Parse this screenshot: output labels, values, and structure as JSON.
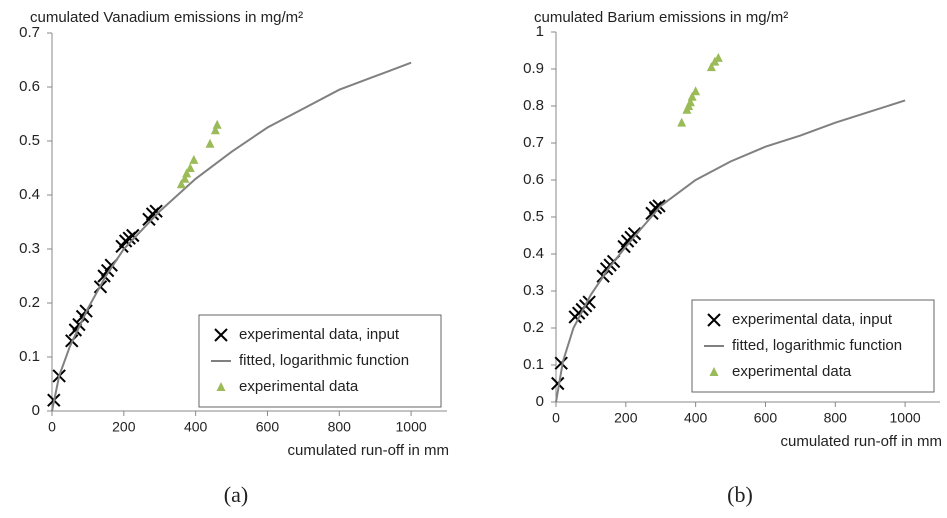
{
  "chart_data": [
    {
      "type": "line",
      "title": "cumulated Vanadium emissions in mg/m²",
      "x_label": "cumulated run-off in mm",
      "caption": "(a)",
      "xlim": [
        0,
        1100
      ],
      "xticks": [
        0,
        200,
        400,
        600,
        800,
        1000
      ],
      "ylim": [
        0,
        0.7
      ],
      "yticks": [
        0,
        0.1,
        0.2,
        0.3,
        0.4,
        0.5,
        0.6,
        0.7
      ],
      "legend": "lower right",
      "series": [
        {
          "name": "experimental data, input",
          "color": "#000000",
          "marker": "x",
          "x": [
            5,
            20,
            55,
            65,
            75,
            85,
            95,
            135,
            145,
            155,
            165,
            195,
            205,
            215,
            225,
            270,
            280,
            290
          ],
          "values": [
            0.02,
            0.065,
            0.13,
            0.15,
            0.16,
            0.175,
            0.185,
            0.23,
            0.25,
            0.26,
            0.27,
            0.305,
            0.315,
            0.32,
            0.325,
            0.355,
            0.365,
            0.37
          ]
        },
        {
          "name": "fitted, logarithmic function",
          "color": "#808080",
          "marker": "line",
          "x": [
            0,
            20,
            50,
            100,
            150,
            200,
            300,
            400,
            500,
            600,
            700,
            800,
            900,
            1000
          ],
          "values": [
            0,
            0.065,
            0.12,
            0.19,
            0.25,
            0.3,
            0.37,
            0.43,
            0.48,
            0.525,
            0.56,
            0.595,
            0.62,
            0.645
          ]
        },
        {
          "name": "experimental data",
          "color": "#9bbb59",
          "marker": "triangle",
          "x": [
            360,
            370,
            375,
            385,
            395,
            440,
            455,
            460
          ],
          "values": [
            0.42,
            0.43,
            0.44,
            0.45,
            0.465,
            0.495,
            0.52,
            0.53
          ]
        }
      ]
    },
    {
      "type": "line",
      "title": "cumulated Barium emissions in mg/m²",
      "x_label": "cumulated run-off in mm",
      "caption": "(b)",
      "xlim": [
        0,
        1100
      ],
      "xticks": [
        0,
        200,
        400,
        600,
        800,
        1000
      ],
      "ylim": [
        0,
        1
      ],
      "yticks": [
        0,
        0.1,
        0.2,
        0.3,
        0.4,
        0.5,
        0.6,
        0.7,
        0.8,
        0.9,
        1
      ],
      "legend": "lower right",
      "series": [
        {
          "name": "experimental data, input",
          "color": "#000000",
          "marker": "x",
          "x": [
            5,
            15,
            55,
            65,
            75,
            85,
            95,
            135,
            145,
            155,
            165,
            195,
            205,
            215,
            225,
            275,
            285,
            295
          ],
          "values": [
            0.05,
            0.105,
            0.23,
            0.24,
            0.25,
            0.26,
            0.27,
            0.34,
            0.36,
            0.37,
            0.38,
            0.42,
            0.435,
            0.445,
            0.455,
            0.51,
            0.525,
            0.53
          ]
        },
        {
          "name": "fitted, logarithmic function",
          "color": "#808080",
          "marker": "line",
          "x": [
            0,
            20,
            50,
            100,
            150,
            200,
            300,
            400,
            500,
            600,
            700,
            800,
            900,
            1000
          ],
          "values": [
            0,
            0.11,
            0.2,
            0.29,
            0.36,
            0.42,
            0.53,
            0.6,
            0.65,
            0.69,
            0.72,
            0.755,
            0.785,
            0.815
          ]
        },
        {
          "name": "experimental data",
          "color": "#9bbb59",
          "marker": "triangle",
          "x": [
            360,
            375,
            380,
            385,
            390,
            400,
            445,
            455,
            465
          ],
          "values": [
            0.755,
            0.79,
            0.8,
            0.81,
            0.825,
            0.84,
            0.905,
            0.92,
            0.93
          ]
        }
      ]
    }
  ]
}
